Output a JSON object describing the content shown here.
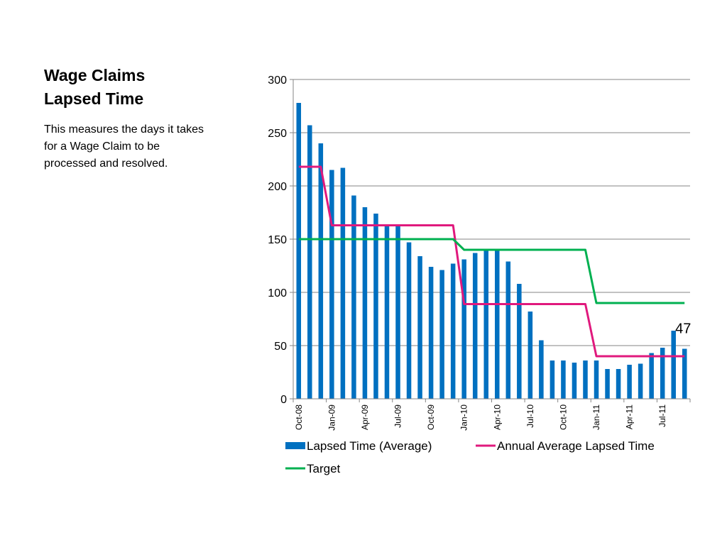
{
  "slide": {
    "title": "Wage Claims\nLapsed Time",
    "description": "This measures the days it takes\nfor a Wage Claim to be\nprocessed and resolved."
  },
  "colors": {
    "bars": "#0070c0",
    "annual_average": "#e0197d",
    "target": "#00b050",
    "gridline": "#868686"
  },
  "chart_data": {
    "type": "bar",
    "title": "",
    "xlabel": "",
    "ylabel": "",
    "ylim": [
      0,
      300
    ],
    "yticks": [
      "0",
      "50",
      "100",
      "150",
      "200",
      "250",
      "300"
    ],
    "grid": true,
    "legend_position": "bottom",
    "x_tick_labels": [
      {
        "index": 0,
        "label": "Oct-08"
      },
      {
        "index": 3,
        "label": "Jan-09"
      },
      {
        "index": 6,
        "label": "Apr-09"
      },
      {
        "index": 9,
        "label": "Jul-09"
      },
      {
        "index": 12,
        "label": "Oct-09"
      },
      {
        "index": 15,
        "label": "Jan-10"
      },
      {
        "index": 18,
        "label": "Apr-10"
      },
      {
        "index": 21,
        "label": "Jul-10"
      },
      {
        "index": 24,
        "label": "Oct-10"
      },
      {
        "index": 27,
        "label": "Jan-11"
      },
      {
        "index": 30,
        "label": "Apr-11"
      },
      {
        "index": 33,
        "label": "Jul-11"
      }
    ],
    "series": [
      {
        "name": "Lapsed Time (Average)",
        "type": "bar",
        "values": [
          278,
          257,
          240,
          215,
          217,
          191,
          180,
          174,
          162,
          164,
          147,
          134,
          124,
          121,
          127,
          131,
          137,
          140,
          141,
          129,
          108,
          82,
          55,
          36,
          36,
          34,
          36,
          36,
          28,
          28,
          32,
          33,
          43,
          48,
          64,
          47
        ]
      },
      {
        "name": "Annual Average Lapsed Time",
        "type": "line",
        "values": [
          218,
          218,
          218,
          163,
          163,
          163,
          163,
          163,
          163,
          163,
          163,
          163,
          163,
          163,
          163,
          89,
          89,
          89,
          89,
          89,
          89,
          89,
          89,
          89,
          89,
          89,
          89,
          40,
          40,
          40,
          40,
          40,
          40,
          40,
          40,
          40
        ]
      },
      {
        "name": "Target",
        "type": "line",
        "values": [
          150,
          150,
          150,
          150,
          150,
          150,
          150,
          150,
          150,
          150,
          150,
          150,
          150,
          150,
          150,
          140,
          140,
          140,
          140,
          140,
          140,
          140,
          140,
          140,
          140,
          140,
          140,
          90,
          90,
          90,
          90,
          90,
          90,
          90,
          90,
          90
        ]
      }
    ],
    "annotations": [
      {
        "index": 35,
        "text": "47"
      }
    ]
  }
}
